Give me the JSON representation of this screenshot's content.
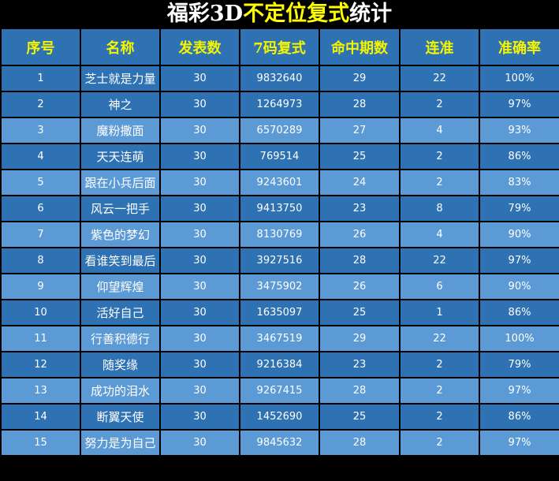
{
  "title": {
    "part1": "福彩3D",
    "part2": "不定位复式",
    "part3": "统计"
  },
  "colors": {
    "header_bg": "#2e72b3",
    "row_dark": "#2e72b3",
    "row_light": "#5b9ad5",
    "header_text": "#f5f500",
    "title_highlight": "#ffff00"
  },
  "columns": [
    "序号",
    "名称",
    "发表数",
    "7码复式",
    "命中期数",
    "连准",
    "准确率"
  ],
  "rows": [
    [
      "1",
      "芝士就是力量",
      "30",
      "9832640",
      "29",
      "22",
      "100%"
    ],
    [
      "2",
      "神之",
      "30",
      "1264973",
      "28",
      "2",
      "97%"
    ],
    [
      "3",
      "魔粉撒面",
      "30",
      "6570289",
      "27",
      "4",
      "93%"
    ],
    [
      "4",
      "天天连萌",
      "30",
      "769514",
      "25",
      "2",
      "86%"
    ],
    [
      "5",
      "跟在小兵后面",
      "30",
      "9243601",
      "24",
      "2",
      "83%"
    ],
    [
      "6",
      "风云一把手",
      "30",
      "9413750",
      "23",
      "8",
      "79%"
    ],
    [
      "7",
      "紫色的梦幻",
      "30",
      "8130769",
      "26",
      "4",
      "90%"
    ],
    [
      "8",
      "看谁笑到最后",
      "30",
      "3927516",
      "28",
      "22",
      "97%"
    ],
    [
      "9",
      "仰望辉煌",
      "30",
      "3475902",
      "26",
      "6",
      "90%"
    ],
    [
      "10",
      "活好自己",
      "30",
      "1635097",
      "25",
      "1",
      "86%"
    ],
    [
      "11",
      "行善积德行",
      "30",
      "3467519",
      "29",
      "22",
      "100%"
    ],
    [
      "12",
      "随奖缘",
      "30",
      "9216384",
      "23",
      "2",
      "79%"
    ],
    [
      "13",
      "成功的泪水",
      "30",
      "9267415",
      "28",
      "2",
      "97%"
    ],
    [
      "14",
      "断翼天使",
      "30",
      "1452690",
      "25",
      "2",
      "86%"
    ],
    [
      "15",
      "努力是为自己",
      "30",
      "9845632",
      "28",
      "2",
      "97%"
    ]
  ]
}
